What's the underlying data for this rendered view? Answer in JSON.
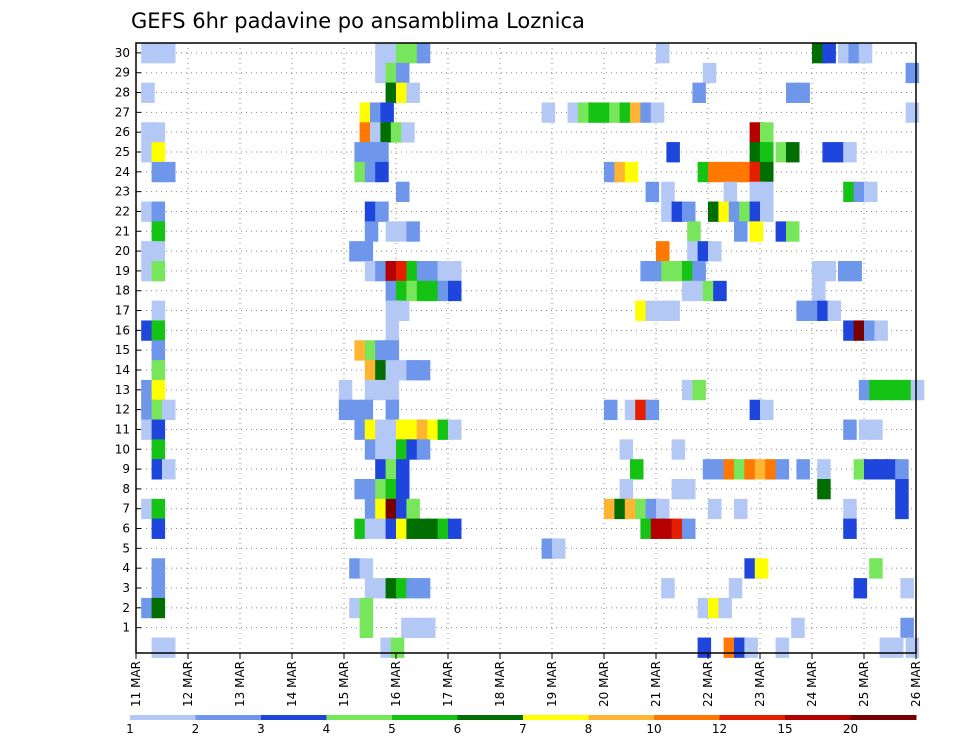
{
  "chart_data": {
    "type": "heatmap",
    "title": "GEFS 6hr padavine po ansamblima Loznica",
    "xlabel": "",
    "ylabel": "",
    "x_tick_labels": [
      "11 MAR",
      "12 MAR",
      "13 MAR",
      "14 MAR",
      "15 MAR",
      "16 MAR",
      "17 MAR",
      "18 MAR",
      "19 MAR",
      "20 MAR",
      "21 MAR",
      "22 MAR",
      "23 MAR",
      "24 MAR",
      "25 MAR",
      "26 MAR"
    ],
    "y_tick_labels": [
      "1",
      "2",
      "3",
      "4",
      "5",
      "6",
      "7",
      "8",
      "9",
      "10",
      "11",
      "12",
      "13",
      "14",
      "15",
      "16",
      "17",
      "18",
      "19",
      "20",
      "21",
      "22",
      "23",
      "24",
      "25",
      "26",
      "27",
      "28",
      "29",
      "30"
    ],
    "x_range": [
      0,
      15
    ],
    "y_range": [
      0,
      30
    ],
    "grid": true,
    "levels": [
      1,
      2,
      3,
      4,
      5,
      6,
      7,
      8,
      10,
      12,
      15,
      20
    ],
    "colorbar": {
      "labels": [
        "1",
        "2",
        "3",
        "4",
        "5",
        "6",
        "7",
        "8",
        "10",
        "12",
        "15",
        "20"
      ],
      "colors": [
        "#b4c8f5",
        "#6e96eb",
        "#1e46dc",
        "#78e65a",
        "#14c314",
        "#006e00",
        "#ffff00",
        "#ffb432",
        "#ff7800",
        "#e61e00",
        "#b40000",
        "#780000"
      ]
    },
    "cells": [
      [
        0.1,
        30,
        1
      ],
      [
        0.3,
        30,
        1
      ],
      [
        0.5,
        30,
        1
      ],
      [
        4.6,
        30,
        1
      ],
      [
        4.8,
        30,
        1
      ],
      [
        5.0,
        30,
        4
      ],
      [
        5.2,
        30,
        4
      ],
      [
        5.4,
        30,
        2
      ],
      [
        10.0,
        30,
        1
      ],
      [
        13.0,
        30,
        6
      ],
      [
        13.2,
        30,
        3
      ],
      [
        13.5,
        30,
        1
      ],
      [
        13.7,
        30,
        2
      ],
      [
        13.9,
        30,
        1
      ],
      [
        4.6,
        29,
        1
      ],
      [
        4.8,
        29,
        4
      ],
      [
        5.0,
        29,
        2
      ],
      [
        10.9,
        29,
        1
      ],
      [
        14.8,
        29,
        2
      ],
      [
        0.1,
        28,
        1
      ],
      [
        4.8,
        28,
        6
      ],
      [
        5.0,
        28,
        7
      ],
      [
        5.2,
        28,
        1
      ],
      [
        10.7,
        28,
        2
      ],
      [
        12.5,
        28,
        2
      ],
      [
        12.7,
        28,
        2
      ],
      [
        4.3,
        27,
        7
      ],
      [
        4.5,
        27,
        2
      ],
      [
        4.7,
        27,
        3
      ],
      [
        7.8,
        27,
        1
      ],
      [
        8.3,
        27,
        1
      ],
      [
        8.5,
        27,
        4
      ],
      [
        8.7,
        27,
        5
      ],
      [
        8.9,
        27,
        5
      ],
      [
        9.1,
        27,
        4
      ],
      [
        9.3,
        27,
        5
      ],
      [
        9.5,
        27,
        8
      ],
      [
        9.7,
        27,
        2
      ],
      [
        9.9,
        27,
        1
      ],
      [
        14.8,
        27,
        1
      ],
      [
        0.1,
        26,
        1
      ],
      [
        0.3,
        26,
        1
      ],
      [
        4.3,
        26,
        9
      ],
      [
        4.5,
        26,
        1
      ],
      [
        4.7,
        26,
        6
      ],
      [
        4.9,
        26,
        4
      ],
      [
        5.1,
        26,
        1
      ],
      [
        11.8,
        26,
        11
      ],
      [
        12.0,
        26,
        4
      ],
      [
        0.1,
        25,
        1
      ],
      [
        0.3,
        25,
        7
      ],
      [
        4.2,
        25,
        2
      ],
      [
        4.4,
        25,
        2
      ],
      [
        4.6,
        25,
        2
      ],
      [
        10.2,
        25,
        3
      ],
      [
        11.8,
        25,
        6
      ],
      [
        12.0,
        25,
        5
      ],
      [
        12.3,
        25,
        4
      ],
      [
        12.5,
        25,
        6
      ],
      [
        13.2,
        25,
        3
      ],
      [
        13.4,
        25,
        3
      ],
      [
        13.6,
        25,
        1
      ],
      [
        0.3,
        24,
        2
      ],
      [
        0.5,
        24,
        2
      ],
      [
        4.2,
        24,
        4
      ],
      [
        4.4,
        24,
        2
      ],
      [
        4.6,
        24,
        3
      ],
      [
        9.0,
        24,
        2
      ],
      [
        9.2,
        24,
        8
      ],
      [
        9.4,
        24,
        7
      ],
      [
        10.8,
        24,
        5
      ],
      [
        11.0,
        24,
        9
      ],
      [
        11.2,
        24,
        9
      ],
      [
        11.4,
        24,
        9
      ],
      [
        11.6,
        24,
        9
      ],
      [
        11.8,
        24,
        10
      ],
      [
        12.0,
        24,
        6
      ],
      [
        5.0,
        23,
        2
      ],
      [
        9.8,
        23,
        2
      ],
      [
        10.1,
        23,
        1
      ],
      [
        11.3,
        23,
        1
      ],
      [
        11.8,
        23,
        1
      ],
      [
        12.0,
        23,
        1
      ],
      [
        13.6,
        23,
        5
      ],
      [
        13.8,
        23,
        2
      ],
      [
        14.0,
        23,
        1
      ],
      [
        0.1,
        22,
        1
      ],
      [
        0.3,
        22,
        2
      ],
      [
        4.4,
        22,
        3
      ],
      [
        4.6,
        22,
        2
      ],
      [
        10.1,
        22,
        1
      ],
      [
        10.3,
        22,
        3
      ],
      [
        10.5,
        22,
        2
      ],
      [
        11.0,
        22,
        6
      ],
      [
        11.2,
        22,
        7
      ],
      [
        11.4,
        22,
        2
      ],
      [
        11.6,
        22,
        4
      ],
      [
        11.8,
        22,
        3
      ],
      [
        12.0,
        22,
        1
      ],
      [
        0.3,
        21,
        5
      ],
      [
        4.4,
        21,
        2
      ],
      [
        4.8,
        21,
        1
      ],
      [
        5.0,
        21,
        1
      ],
      [
        5.2,
        21,
        2
      ],
      [
        10.6,
        21,
        4
      ],
      [
        11.5,
        21,
        2
      ],
      [
        11.8,
        21,
        7
      ],
      [
        12.3,
        21,
        3
      ],
      [
        12.5,
        21,
        4
      ],
      [
        0.1,
        20,
        1
      ],
      [
        0.3,
        20,
        1
      ],
      [
        4.1,
        20,
        2
      ],
      [
        4.3,
        20,
        2
      ],
      [
        10.0,
        20,
        9
      ],
      [
        10.6,
        20,
        1
      ],
      [
        10.8,
        20,
        3
      ],
      [
        11.0,
        20,
        1
      ],
      [
        0.1,
        19,
        1
      ],
      [
        0.3,
        19,
        4
      ],
      [
        4.4,
        19,
        1
      ],
      [
        4.6,
        19,
        2
      ],
      [
        4.8,
        19,
        11
      ],
      [
        5.0,
        19,
        10
      ],
      [
        5.2,
        19,
        5
      ],
      [
        5.4,
        19,
        2
      ],
      [
        5.6,
        19,
        2
      ],
      [
        5.8,
        19,
        1
      ],
      [
        6.0,
        19,
        1
      ],
      [
        9.7,
        19,
        2
      ],
      [
        9.9,
        19,
        2
      ],
      [
        10.1,
        19,
        4
      ],
      [
        10.3,
        19,
        4
      ],
      [
        10.5,
        19,
        5
      ],
      [
        10.7,
        19,
        2
      ],
      [
        13.0,
        19,
        1
      ],
      [
        13.2,
        19,
        1
      ],
      [
        13.5,
        19,
        2
      ],
      [
        13.7,
        19,
        2
      ],
      [
        4.8,
        18,
        2
      ],
      [
        5.0,
        18,
        5
      ],
      [
        5.2,
        18,
        4
      ],
      [
        5.4,
        18,
        5
      ],
      [
        5.6,
        18,
        5
      ],
      [
        5.8,
        18,
        2
      ],
      [
        6.0,
        18,
        3
      ],
      [
        10.5,
        18,
        1
      ],
      [
        10.7,
        18,
        1
      ],
      [
        10.9,
        18,
        4
      ],
      [
        11.1,
        18,
        3
      ],
      [
        13.0,
        18,
        1
      ],
      [
        0.3,
        17,
        1
      ],
      [
        4.8,
        17,
        1
      ],
      [
        5.0,
        17,
        1
      ],
      [
        9.6,
        17,
        7
      ],
      [
        9.8,
        17,
        1
      ],
      [
        10.0,
        17,
        1
      ],
      [
        10.2,
        17,
        1
      ],
      [
        12.7,
        17,
        2
      ],
      [
        12.9,
        17,
        2
      ],
      [
        13.1,
        17,
        3
      ],
      [
        13.3,
        17,
        1
      ],
      [
        0.1,
        16,
        3
      ],
      [
        0.3,
        16,
        5
      ],
      [
        4.8,
        16,
        1
      ],
      [
        13.6,
        16,
        3
      ],
      [
        13.8,
        16,
        12
      ],
      [
        14.0,
        16,
        2
      ],
      [
        14.2,
        16,
        1
      ],
      [
        0.3,
        15,
        2
      ],
      [
        4.2,
        15,
        8
      ],
      [
        4.4,
        15,
        4
      ],
      [
        4.6,
        15,
        2
      ],
      [
        4.8,
        15,
        2
      ],
      [
        0.3,
        14,
        4
      ],
      [
        4.4,
        14,
        8
      ],
      [
        4.6,
        14,
        6
      ],
      [
        4.8,
        14,
        1
      ],
      [
        5.0,
        14,
        1
      ],
      [
        5.2,
        14,
        2
      ],
      [
        5.4,
        14,
        2
      ],
      [
        0.1,
        13,
        2
      ],
      [
        0.3,
        13,
        7
      ],
      [
        3.9,
        13,
        1
      ],
      [
        4.4,
        13,
        1
      ],
      [
        4.6,
        13,
        1
      ],
      [
        4.8,
        13,
        1
      ],
      [
        10.5,
        13,
        1
      ],
      [
        10.7,
        13,
        4
      ],
      [
        13.9,
        13,
        2
      ],
      [
        14.1,
        13,
        5
      ],
      [
        14.3,
        13,
        5
      ],
      [
        14.5,
        13,
        5
      ],
      [
        14.7,
        13,
        5
      ],
      [
        14.9,
        13,
        1
      ],
      [
        0.1,
        12,
        2
      ],
      [
        0.3,
        12,
        4
      ],
      [
        0.5,
        12,
        1
      ],
      [
        3.9,
        12,
        2
      ],
      [
        4.1,
        12,
        2
      ],
      [
        4.3,
        12,
        2
      ],
      [
        4.8,
        12,
        2
      ],
      [
        9.0,
        12,
        2
      ],
      [
        9.4,
        12,
        1
      ],
      [
        9.6,
        12,
        10
      ],
      [
        9.8,
        12,
        2
      ],
      [
        11.8,
        12,
        3
      ],
      [
        12.0,
        12,
        1
      ],
      [
        0.1,
        11,
        1
      ],
      [
        0.3,
        11,
        3
      ],
      [
        4.2,
        11,
        2
      ],
      [
        4.4,
        11,
        7
      ],
      [
        4.6,
        11,
        1
      ],
      [
        4.8,
        11,
        1
      ],
      [
        5.0,
        11,
        7
      ],
      [
        5.2,
        11,
        7
      ],
      [
        5.4,
        11,
        8
      ],
      [
        5.6,
        11,
        7
      ],
      [
        5.8,
        11,
        5
      ],
      [
        6.0,
        11,
        1
      ],
      [
        13.6,
        11,
        2
      ],
      [
        13.9,
        11,
        1
      ],
      [
        14.1,
        11,
        1
      ],
      [
        0.3,
        10,
        5
      ],
      [
        4.4,
        10,
        2
      ],
      [
        4.6,
        10,
        1
      ],
      [
        4.8,
        10,
        1
      ],
      [
        5.0,
        10,
        5
      ],
      [
        5.2,
        10,
        3
      ],
      [
        5.4,
        10,
        2
      ],
      [
        9.3,
        10,
        1
      ],
      [
        10.3,
        10,
        1
      ],
      [
        0.3,
        9,
        3
      ],
      [
        0.5,
        9,
        1
      ],
      [
        4.6,
        9,
        3
      ],
      [
        4.8,
        9,
        4
      ],
      [
        5.0,
        9,
        3
      ],
      [
        9.5,
        9,
        5
      ],
      [
        10.9,
        9,
        2
      ],
      [
        11.1,
        9,
        2
      ],
      [
        11.3,
        9,
        9
      ],
      [
        11.5,
        9,
        4
      ],
      [
        11.7,
        9,
        9
      ],
      [
        11.9,
        9,
        8
      ],
      [
        12.1,
        9,
        9
      ],
      [
        12.3,
        9,
        2
      ],
      [
        12.7,
        9,
        2
      ],
      [
        13.1,
        9,
        1
      ],
      [
        13.8,
        9,
        4
      ],
      [
        14.0,
        9,
        3
      ],
      [
        14.2,
        9,
        3
      ],
      [
        14.4,
        9,
        3
      ],
      [
        14.6,
        9,
        2
      ],
      [
        4.2,
        8,
        2
      ],
      [
        4.4,
        8,
        2
      ],
      [
        4.6,
        8,
        4
      ],
      [
        4.8,
        8,
        5
      ],
      [
        5.0,
        8,
        3
      ],
      [
        9.3,
        8,
        1
      ],
      [
        10.3,
        8,
        1
      ],
      [
        10.5,
        8,
        1
      ],
      [
        13.1,
        8,
        6
      ],
      [
        14.6,
        8,
        3
      ],
      [
        0.1,
        7,
        1
      ],
      [
        0.3,
        7,
        5
      ],
      [
        4.4,
        7,
        2
      ],
      [
        4.6,
        7,
        7
      ],
      [
        4.8,
        7,
        12
      ],
      [
        5.0,
        7,
        3
      ],
      [
        5.2,
        7,
        4
      ],
      [
        9.0,
        7,
        8
      ],
      [
        9.2,
        7,
        6
      ],
      [
        9.4,
        7,
        8
      ],
      [
        9.6,
        7,
        4
      ],
      [
        9.8,
        7,
        2
      ],
      [
        10.0,
        7,
        1
      ],
      [
        11.0,
        7,
        1
      ],
      [
        11.5,
        7,
        1
      ],
      [
        13.6,
        7,
        1
      ],
      [
        14.6,
        7,
        3
      ],
      [
        0.3,
        6,
        3
      ],
      [
        4.2,
        6,
        5
      ],
      [
        4.4,
        6,
        1
      ],
      [
        4.6,
        6,
        1
      ],
      [
        4.8,
        6,
        3
      ],
      [
        5.0,
        6,
        7
      ],
      [
        5.2,
        6,
        6
      ],
      [
        5.4,
        6,
        6
      ],
      [
        5.6,
        6,
        6
      ],
      [
        5.8,
        6,
        5
      ],
      [
        6.0,
        6,
        3
      ],
      [
        9.7,
        6,
        5
      ],
      [
        9.9,
        6,
        11
      ],
      [
        10.1,
        6,
        11
      ],
      [
        10.3,
        6,
        10
      ],
      [
        10.5,
        6,
        2
      ],
      [
        13.6,
        6,
        3
      ],
      [
        7.8,
        5,
        2
      ],
      [
        8.0,
        5,
        1
      ],
      [
        0.3,
        4,
        2
      ],
      [
        4.1,
        4,
        2
      ],
      [
        4.3,
        4,
        1
      ],
      [
        11.7,
        4,
        3
      ],
      [
        11.9,
        4,
        7
      ],
      [
        14.1,
        4,
        4
      ],
      [
        0.3,
        3,
        2
      ],
      [
        4.4,
        3,
        1
      ],
      [
        4.6,
        3,
        1
      ],
      [
        4.8,
        3,
        6
      ],
      [
        5.0,
        3,
        5
      ],
      [
        5.2,
        3,
        2
      ],
      [
        5.4,
        3,
        2
      ],
      [
        10.1,
        3,
        1
      ],
      [
        11.4,
        3,
        1
      ],
      [
        13.8,
        3,
        3
      ],
      [
        14.7,
        3,
        1
      ],
      [
        0.1,
        2,
        2
      ],
      [
        0.3,
        2,
        6
      ],
      [
        4.1,
        2,
        1
      ],
      [
        4.3,
        2,
        4
      ],
      [
        10.8,
        2,
        1
      ],
      [
        11.0,
        2,
        7
      ],
      [
        11.2,
        2,
        1
      ],
      [
        4.3,
        1,
        4
      ],
      [
        5.1,
        1,
        1
      ],
      [
        5.3,
        1,
        1
      ],
      [
        5.5,
        1,
        1
      ],
      [
        12.6,
        1,
        1
      ],
      [
        14.7,
        1,
        2
      ],
      [
        0.3,
        0,
        1
      ],
      [
        0.5,
        0,
        1
      ],
      [
        4.7,
        0,
        1
      ],
      [
        4.9,
        0,
        4
      ],
      [
        10.8,
        0,
        3
      ],
      [
        11.3,
        0,
        9
      ],
      [
        11.5,
        0,
        3
      ],
      [
        11.7,
        0,
        1
      ],
      [
        12.3,
        0,
        1
      ],
      [
        14.3,
        0,
        1
      ],
      [
        14.5,
        0,
        1
      ],
      [
        14.8,
        0,
        1
      ]
    ]
  }
}
